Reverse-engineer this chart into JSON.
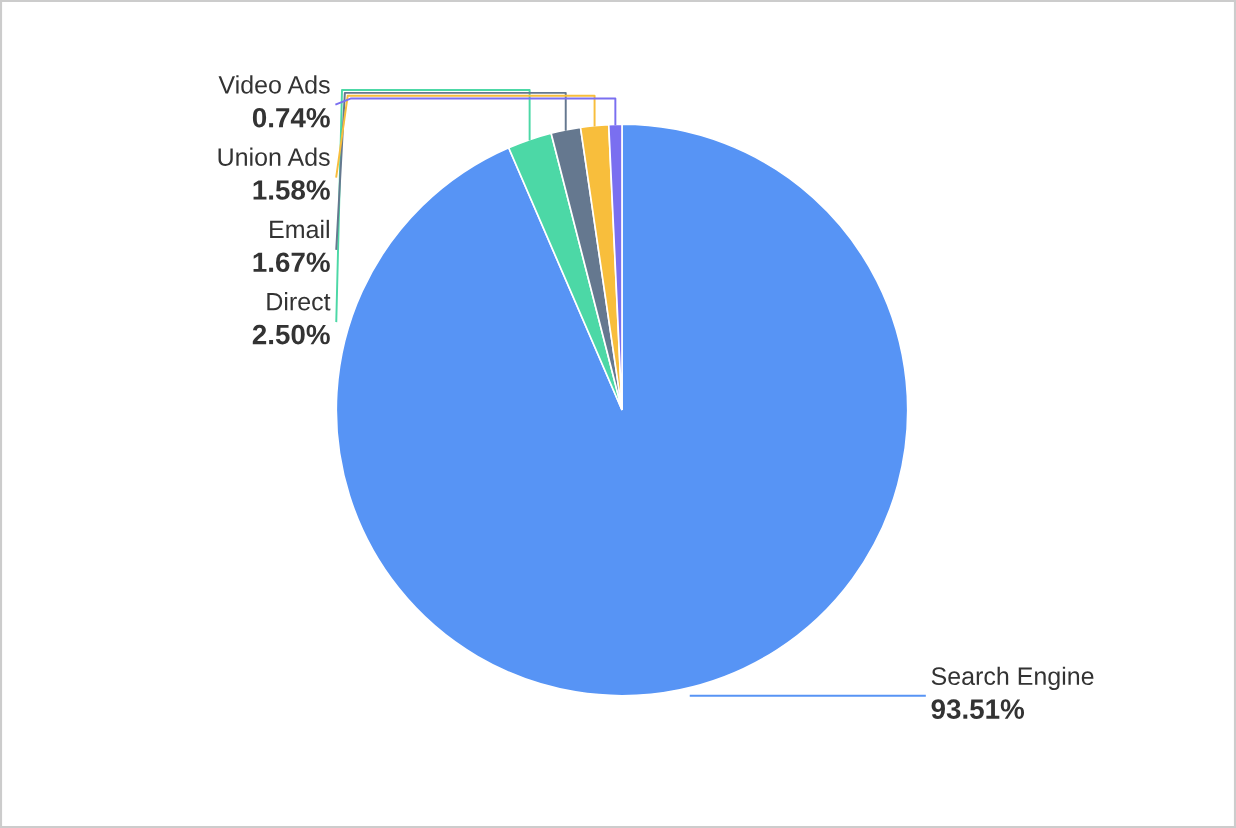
{
  "chart_data": {
    "type": "pie",
    "categories": [
      "Search Engine",
      "Direct",
      "Email",
      "Union Ads",
      "Video Ads"
    ],
    "values": [
      93.51,
      2.5,
      1.67,
      1.58,
      0.74
    ],
    "value_labels": [
      "93.51%",
      "2.50%",
      "1.67%",
      "1.58%",
      "0.74%"
    ],
    "colors": [
      "#5794f5",
      "#4cd8a6",
      "#65788f",
      "#f8be3c",
      "#7a6ff0"
    ]
  }
}
